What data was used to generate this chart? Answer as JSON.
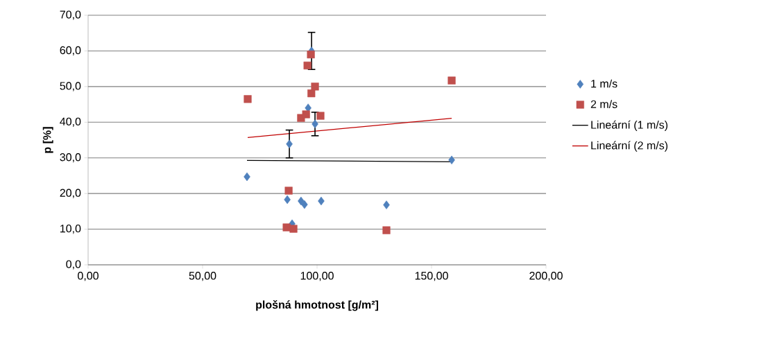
{
  "chart_data": {
    "type": "scatter",
    "xlabel": "plošná hmotnost [g/m²]",
    "ylabel": "p [%]",
    "xlim": [
      0,
      200
    ],
    "ylim": [
      0,
      70
    ],
    "xticks": [
      {
        "value": 0,
        "label": "0,00"
      },
      {
        "value": 50,
        "label": "50,00"
      },
      {
        "value": 100,
        "label": "100,00"
      },
      {
        "value": 150,
        "label": "150,00"
      },
      {
        "value": 200,
        "label": "200,00"
      }
    ],
    "yticks": [
      {
        "value": 0,
        "label": "0,0"
      },
      {
        "value": 10,
        "label": "10,0"
      },
      {
        "value": 20,
        "label": "20,0"
      },
      {
        "value": 30,
        "label": "30,0"
      },
      {
        "value": 40,
        "label": "40,0"
      },
      {
        "value": 50,
        "label": "50,0"
      },
      {
        "value": 60,
        "label": "60,0"
      },
      {
        "value": 70,
        "label": "70,0"
      }
    ],
    "grid": "y",
    "legend": "right",
    "series": [
      {
        "name": "1 m/s",
        "color": "#4f81bd",
        "marker": "diamond",
        "x": [
          69.4,
          87.9,
          87.0,
          89.1,
          93.0,
          94.5,
          101.8,
          96.1,
          99.1,
          97.6,
          130.3,
          158.8
        ],
        "values": [
          24.7,
          33.9,
          18.3,
          11.5,
          17.9,
          16.9,
          17.9,
          44.0,
          39.5,
          60.0,
          16.8,
          29.4
        ],
        "errors": [
          null,
          3.9,
          null,
          null,
          null,
          null,
          null,
          null,
          3.3,
          5.2,
          null,
          null
        ]
      },
      {
        "name": "2 m/s",
        "color": "#c0504d",
        "marker": "square",
        "x": [
          69.7,
          87.6,
          86.7,
          89.7,
          93.0,
          95.2,
          101.5,
          95.8,
          97.3,
          97.5,
          99.1,
          130.3,
          158.8
        ],
        "values": [
          46.5,
          20.8,
          10.5,
          10.1,
          41.2,
          42.2,
          41.8,
          55.9,
          59.0,
          48.1,
          50.0,
          9.7,
          51.7
        ]
      },
      {
        "name": "Lineární (1 m/s)",
        "type": "line",
        "color": "#000000",
        "marker": "none",
        "x": [
          69.4,
          158.8
        ],
        "values": [
          29.3,
          28.9
        ]
      },
      {
        "name": "Lineární (2 m/s)",
        "type": "line",
        "color": "#c00000",
        "marker": "none",
        "x": [
          69.7,
          158.8
        ],
        "values": [
          35.7,
          41.1
        ]
      }
    ]
  }
}
